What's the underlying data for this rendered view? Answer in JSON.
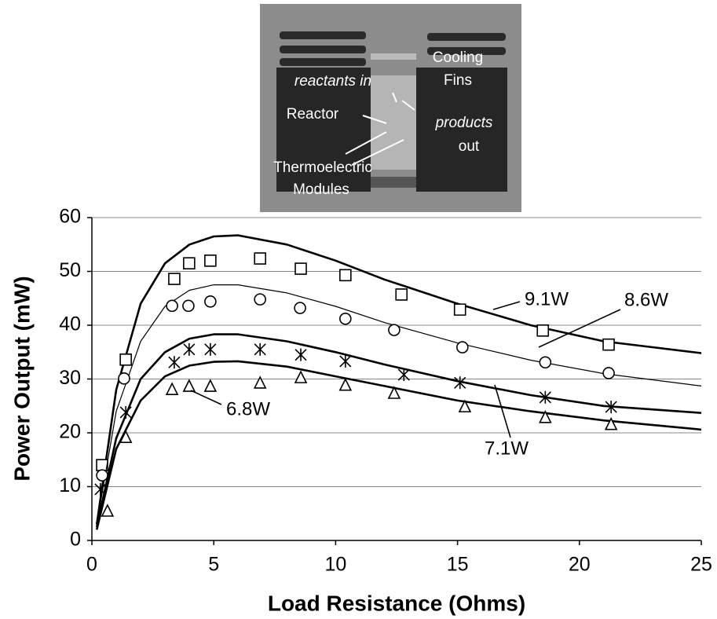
{
  "chart_data": {
    "type": "scatter",
    "inset": {
      "labels": [
        {
          "text": "Cooling"
        },
        {
          "text": "Fins"
        },
        {
          "text": "reactants in"
        },
        {
          "text": "Reactor"
        },
        {
          "text": "products"
        },
        {
          "text": "out"
        },
        {
          "text": "Thermoelectric"
        },
        {
          "text": "Modules"
        }
      ]
    },
    "x_label": "Load Resistance (Ohms)",
    "y_label": "Power Output (mW)",
    "xlim": [
      0,
      25
    ],
    "xticks": [
      0,
      5,
      10,
      15,
      20,
      25
    ],
    "ylim": [
      0,
      60
    ],
    "yticks": [
      0,
      10,
      20,
      30,
      40,
      50,
      60
    ],
    "grid": true,
    "series": [
      {
        "name": "9.1W",
        "marker": "square",
        "color": "#000",
        "markers": {
          "x": [
            0.42,
            1.39,
            3.38,
            3.99,
            4.86,
            6.9,
            8.57,
            10.4,
            12.7,
            15.1,
            18.5,
            21.2
          ],
          "values": [
            14,
            33.6,
            48.6,
            51.5,
            52,
            52.4,
            50.5,
            49.3,
            45.7,
            42.9,
            39,
            36.4
          ]
        },
        "curve": {
          "x": [
            0.2,
            1,
            2,
            3,
            4,
            5,
            6,
            8,
            10,
            12,
            15,
            18,
            21,
            25
          ],
          "values": [
            3,
            28,
            44,
            51.5,
            55,
            56.5,
            56.7,
            55,
            52,
            48.5,
            44,
            40,
            37,
            34.8
          ]
        }
      },
      {
        "name": "8.6W",
        "marker": "circle",
        "color": "#000",
        "markers": {
          "x": [
            0.42,
            1.32,
            3.29,
            3.96,
            4.86,
            6.9,
            8.54,
            10.4,
            12.4,
            15.2,
            18.6,
            21.2
          ],
          "values": [
            12.1,
            30.1,
            43.6,
            43.6,
            44.4,
            44.8,
            43.2,
            41.2,
            39.1,
            35.9,
            33.1,
            31.1
          ]
        },
        "curve": {
          "x": [
            0.2,
            1,
            2,
            3,
            4,
            5,
            6,
            8,
            10,
            12,
            15,
            18,
            21,
            25
          ],
          "values": [
            3,
            24,
            37,
            43.5,
            46.5,
            47.5,
            47.5,
            46,
            43.5,
            40.5,
            36.7,
            33.5,
            31,
            28.7
          ]
        }
      },
      {
        "name": "7.1W",
        "marker": "asterisk",
        "color": "#000",
        "markers": {
          "x": [
            0.35,
            1.39,
            3.38,
            3.99,
            4.86,
            6.9,
            8.57,
            10.4,
            12.8,
            15.1,
            18.6,
            21.3
          ],
          "values": [
            9.5,
            23.8,
            33.1,
            35.5,
            35.5,
            35.5,
            34.5,
            33.3,
            30.8,
            29.3,
            26.6,
            24.8
          ]
        },
        "curve": {
          "x": [
            0.2,
            1,
            2,
            3,
            4,
            5,
            6,
            8,
            10,
            12,
            15,
            18,
            21,
            25
          ],
          "values": [
            2.5,
            19,
            30,
            35,
            37.5,
            38.3,
            38.3,
            37,
            35,
            32.7,
            29.6,
            27,
            25,
            23.7
          ]
        }
      },
      {
        "name": "6.8W",
        "marker": "triangle",
        "color": "#000",
        "markers": {
          "x": [
            0.64,
            1.39,
            3.29,
            3.99,
            4.86,
            6.9,
            8.57,
            10.4,
            12.4,
            15.3,
            18.6,
            21.3
          ],
          "values": [
            5.4,
            19.1,
            28,
            28.6,
            28.6,
            29.2,
            30.2,
            28.8,
            27.3,
            24.8,
            22.8,
            21.5
          ]
        },
        "curve": {
          "x": [
            0.2,
            1,
            2,
            3,
            4,
            5,
            6,
            8,
            10,
            12,
            15,
            18,
            21,
            25
          ],
          "values": [
            2,
            17,
            26,
            30.5,
            32.5,
            33.2,
            33.3,
            32.3,
            30.5,
            28.7,
            26,
            24,
            22.3,
            20.6
          ]
        }
      }
    ]
  }
}
